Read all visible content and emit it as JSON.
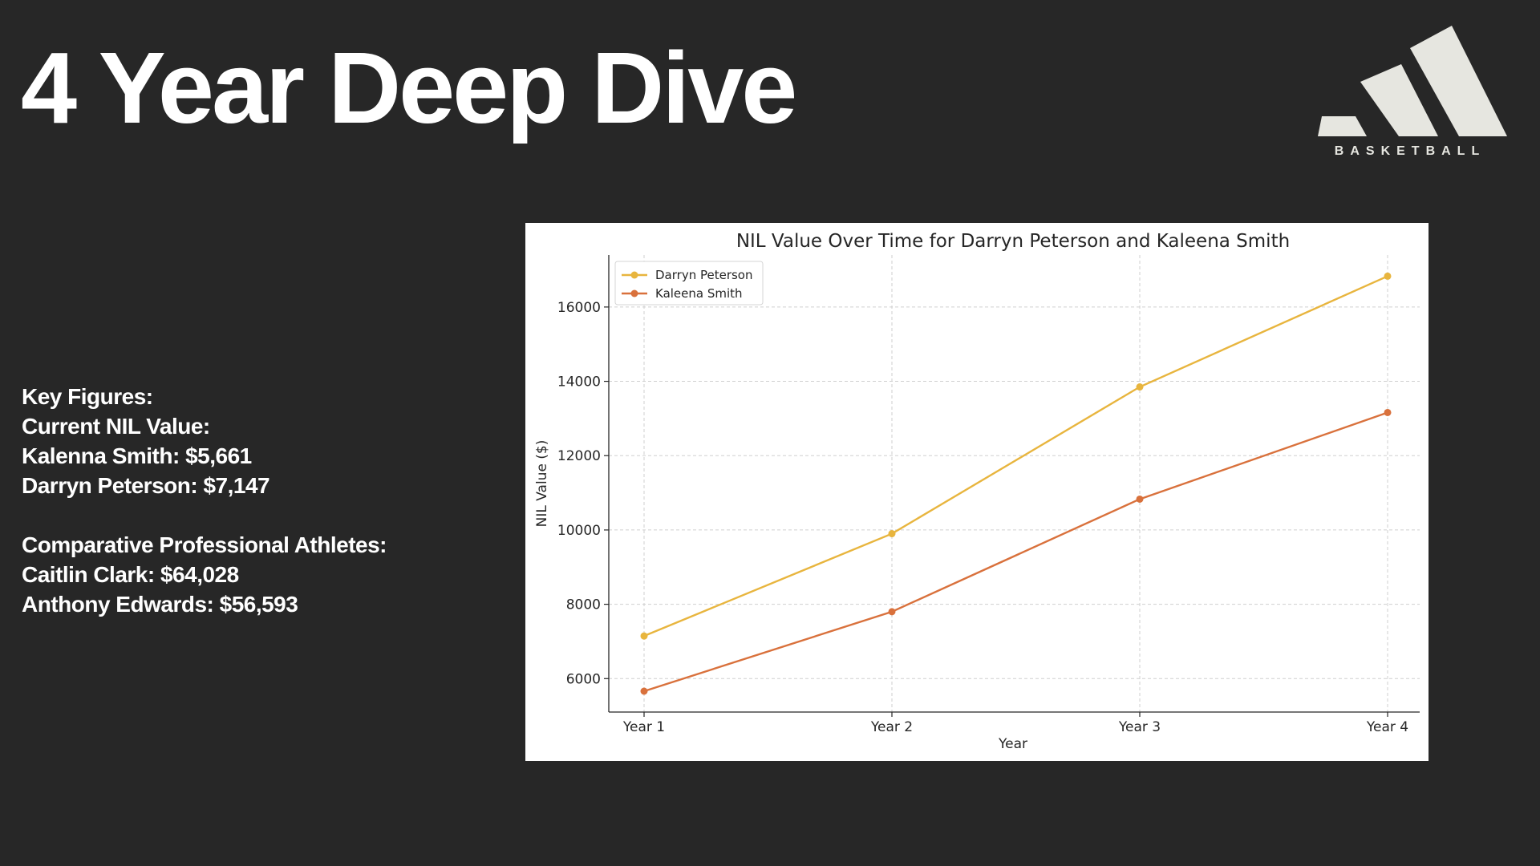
{
  "slide": {
    "title": "4 Year Deep Dive",
    "logo": {
      "icon": "adidas-three-bars-icon",
      "text": "BASKETBALL",
      "color": "#e6e6e0"
    }
  },
  "key_figures": {
    "heading": "Key Figures:",
    "current_heading": "Current NIL Value:",
    "kalenna": "Kalenna Smith: $5,661",
    "darryn": "Darryn Peterson: $7,147",
    "comparative_heading": "Comparative Professional Athletes:",
    "caitlin": "Caitlin Clark: $64,028",
    "anthony": "Anthony Edwards: $56,593"
  },
  "chart_data": {
    "type": "line",
    "title": "NIL Value Over Time for Darryn Peterson and Kaleena Smith",
    "xlabel": "Year",
    "ylabel": "NIL Value ($)",
    "categories": [
      "Year 1",
      "Year 2",
      "Year 3",
      "Year 4"
    ],
    "yticks": [
      6000,
      8000,
      10000,
      12000,
      14000,
      16000
    ],
    "ylim": [
      5100,
      17400
    ],
    "grid": true,
    "legend_position": "top-left",
    "series": [
      {
        "name": "Darryn Peterson",
        "color": "#e8b53e",
        "values": [
          7147,
          9900,
          13850,
          16830
        ]
      },
      {
        "name": "Kaleena Smith",
        "color": "#d9713c",
        "values": [
          5661,
          7800,
          10830,
          13160
        ]
      }
    ]
  }
}
